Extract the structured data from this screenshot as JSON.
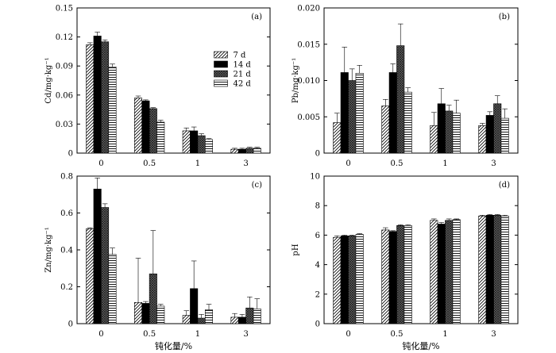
{
  "chart_data": [
    {
      "type": "bar",
      "panel_label": "(a)",
      "ylabel": "Cd/mg·kg⁻¹",
      "xlabel": "",
      "categories": [
        "0",
        "0.5",
        "1",
        "3"
      ],
      "ylim": [
        0,
        0.15
      ],
      "yticks": [
        "0",
        "0.03",
        "0.06",
        "0.09",
        "0.12",
        "0.15"
      ],
      "ytick_values": [
        0,
        0.03,
        0.06,
        0.09,
        0.12,
        0.15
      ],
      "series": [
        {
          "name": "7 d",
          "values": [
            0.112,
            0.057,
            0.023,
            0.004
          ],
          "errors": [
            0.002,
            0.002,
            0.003,
            0.001
          ]
        },
        {
          "name": "14 d",
          "values": [
            0.121,
            0.054,
            0.023,
            0.004
          ],
          "errors": [
            0.004,
            0.001,
            0.004,
            0.001
          ]
        },
        {
          "name": "21 d",
          "values": [
            0.115,
            0.046,
            0.018,
            0.005
          ],
          "errors": [
            0.002,
            0.001,
            0.002,
            0.001
          ]
        },
        {
          "name": "42 d",
          "values": [
            0.089,
            0.032,
            0.014,
            0.005
          ],
          "errors": [
            0.003,
            0.002,
            0.001,
            0.001
          ]
        }
      ],
      "legend": "top-right"
    },
    {
      "type": "bar",
      "panel_label": "(b)",
      "ylabel": "Pb/mg·kg⁻¹",
      "xlabel": "",
      "categories": [
        "0",
        "0.5",
        "1",
        "3"
      ],
      "ylim": [
        0,
        0.02
      ],
      "yticks": [
        "0",
        "0.005",
        "0.010",
        "0.015",
        "0.020"
      ],
      "ytick_values": [
        0,
        0.005,
        0.01,
        0.015,
        0.02
      ],
      "series": [
        {
          "name": "7 d",
          "values": [
            0.0042,
            0.0065,
            0.0038,
            0.0038
          ],
          "errors": [
            0.0013,
            0.0009,
            0.0018,
            0.0003
          ]
        },
        {
          "name": "14 d",
          "values": [
            0.0111,
            0.0111,
            0.0068,
            0.0052
          ],
          "errors": [
            0.0035,
            0.0012,
            0.0021,
            0.0005
          ]
        },
        {
          "name": "21 d",
          "values": [
            0.01,
            0.0148,
            0.0058,
            0.0068
          ],
          "errors": [
            0.0016,
            0.003,
            0.0008,
            0.0011
          ]
        },
        {
          "name": "42 d",
          "values": [
            0.011,
            0.0084,
            0.0055,
            0.0048
          ],
          "errors": [
            0.0011,
            0.0006,
            0.0018,
            0.0013
          ]
        }
      ]
    },
    {
      "type": "bar",
      "panel_label": "(c)",
      "ylabel": "Zn/mg·kg⁻¹",
      "xlabel": "钝化量/%",
      "categories": [
        "0",
        "0.5",
        "1",
        "3"
      ],
      "ylim": [
        0,
        0.8
      ],
      "yticks": [
        "0",
        "0.2",
        "0.4",
        "0.6",
        "0.8"
      ],
      "ytick_values": [
        0,
        0.2,
        0.4,
        0.6,
        0.8
      ],
      "series": [
        {
          "name": "7 d",
          "values": [
            0.515,
            0.115,
            0.045,
            0.035
          ],
          "errors": [
            0.005,
            0.24,
            0.025,
            0.02
          ]
        },
        {
          "name": "14 d",
          "values": [
            0.73,
            0.11,
            0.19,
            0.035
          ],
          "errors": [
            0.06,
            0.01,
            0.15,
            0.015
          ]
        },
        {
          "name": "21 d",
          "values": [
            0.63,
            0.27,
            0.03,
            0.085
          ],
          "errors": [
            0.02,
            0.235,
            0.02,
            0.06
          ]
        },
        {
          "name": "42 d",
          "values": [
            0.375,
            0.095,
            0.075,
            0.08
          ],
          "errors": [
            0.035,
            0.01,
            0.03,
            0.055
          ]
        }
      ]
    },
    {
      "type": "bar",
      "panel_label": "(d)",
      "ylabel": "pH",
      "xlabel": "钝化量/%",
      "categories": [
        "0",
        "0.5",
        "1",
        "3"
      ],
      "ylim": [
        0,
        10
      ],
      "yticks": [
        "0",
        "2",
        "4",
        "6",
        "8",
        "10"
      ],
      "ytick_values": [
        0,
        2,
        4,
        6,
        8,
        10
      ],
      "series": [
        {
          "name": "7 d",
          "values": [
            5.85,
            6.35,
            7.0,
            7.3
          ],
          "errors": [
            0.1,
            0.15,
            0.1,
            0.05
          ]
        },
        {
          "name": "14 d",
          "values": [
            5.95,
            6.25,
            6.75,
            7.35
          ],
          "errors": [
            0.05,
            0.05,
            0.1,
            0.05
          ]
        },
        {
          "name": "21 d",
          "values": [
            5.95,
            6.65,
            7.0,
            7.35
          ],
          "errors": [
            0.05,
            0.05,
            0.1,
            0.05
          ]
        },
        {
          "name": "42 d",
          "values": [
            6.05,
            6.65,
            7.05,
            7.3
          ],
          "errors": [
            0.05,
            0.05,
            0.05,
            0.05
          ]
        }
      ]
    }
  ]
}
